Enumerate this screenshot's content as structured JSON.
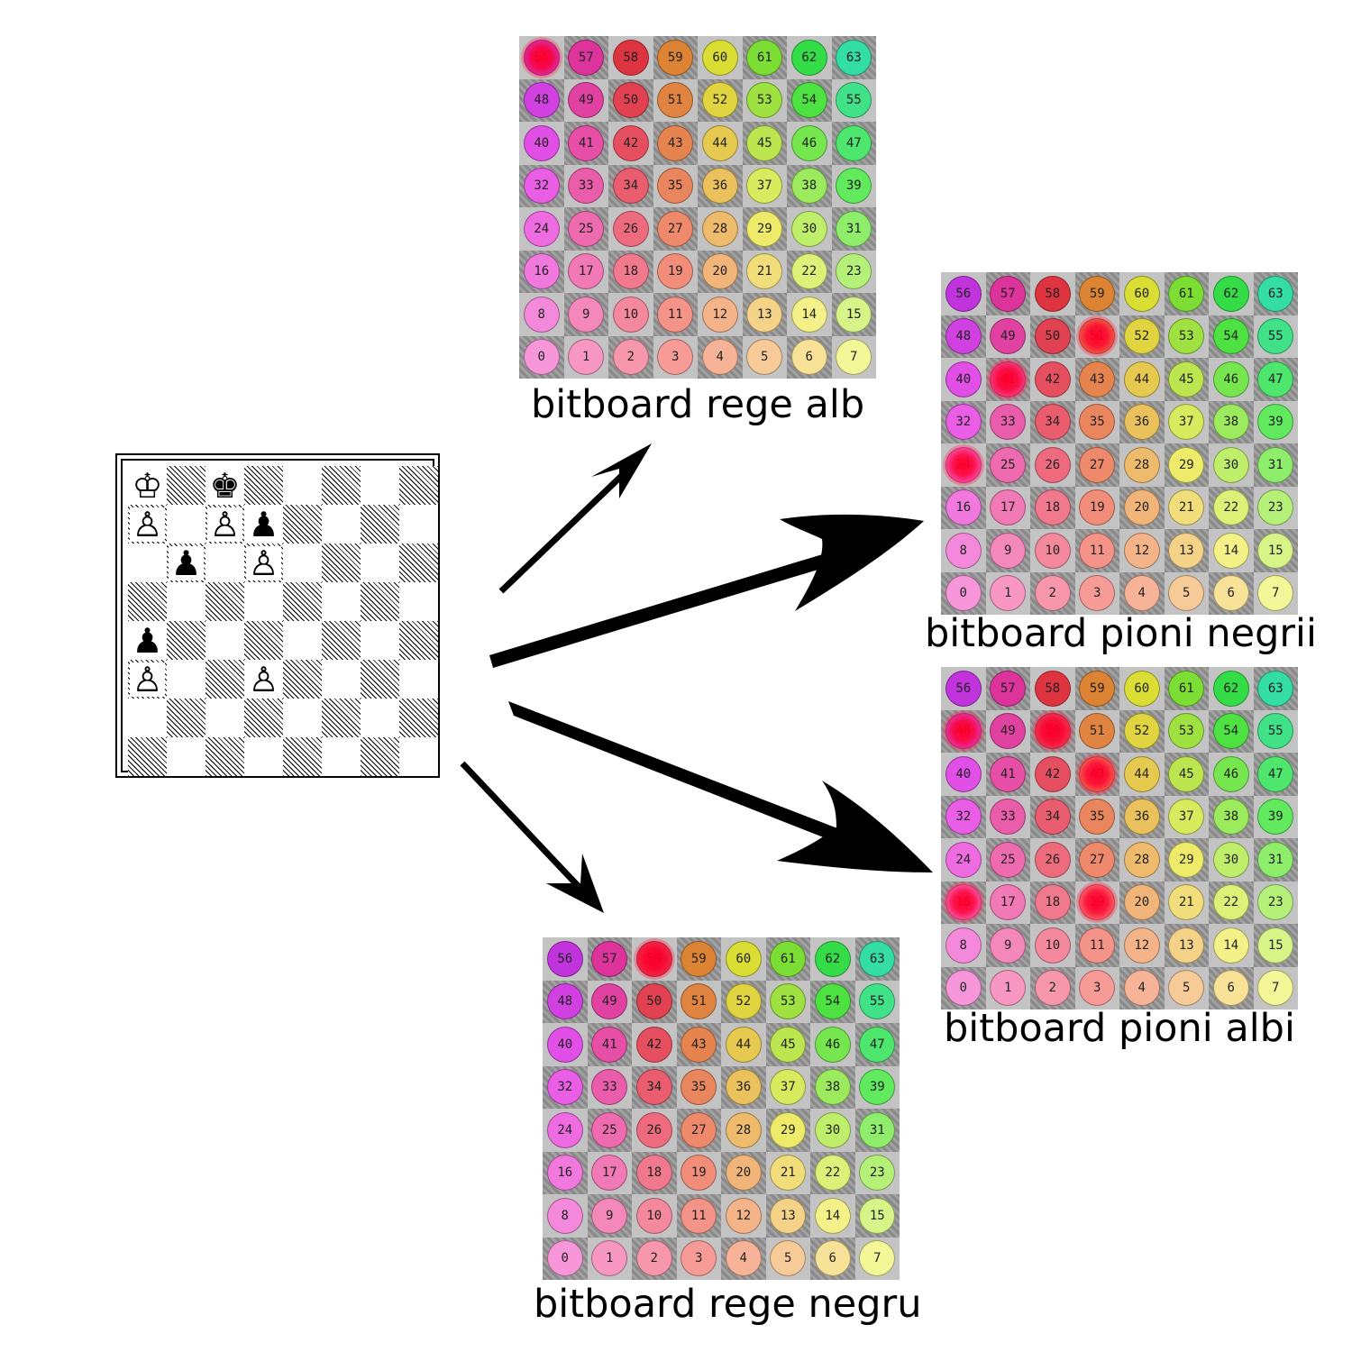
{
  "colors": {
    "highlight": "#ff0030",
    "dark_square": "#8a8a8a",
    "light_square": "#c3c3c3",
    "arrow": "#000000"
  },
  "chessboard": {
    "pieces": [
      {
        "square": "a8",
        "glyph": "♔",
        "name": "white-king-icon"
      },
      {
        "square": "c8",
        "glyph": "♚",
        "name": "black-king-icon"
      },
      {
        "square": "a7",
        "glyph": "♙",
        "name": "white-pawn-icon"
      },
      {
        "square": "c7",
        "glyph": "♙",
        "name": "white-pawn-icon"
      },
      {
        "square": "d7",
        "glyph": "♟",
        "name": "black-pawn-icon"
      },
      {
        "square": "b6",
        "glyph": "♟",
        "name": "black-pawn-icon"
      },
      {
        "square": "d6",
        "glyph": "♙",
        "name": "white-pawn-icon"
      },
      {
        "square": "a4",
        "glyph": "♟",
        "name": "black-pawn-icon"
      },
      {
        "square": "a3",
        "glyph": "♙",
        "name": "white-pawn-icon"
      },
      {
        "square": "d3",
        "glyph": "♙",
        "name": "white-pawn-icon"
      }
    ]
  },
  "bitboards": [
    {
      "id": "white-king",
      "label": "bitboard rege alb",
      "highlighted": [
        56
      ]
    },
    {
      "id": "black-pawns",
      "label": "bitboard pioni negrii",
      "highlighted": [
        51,
        41,
        24
      ]
    },
    {
      "id": "white-pawns",
      "label": "bitboard pioni albi",
      "highlighted": [
        48,
        50,
        43,
        16,
        19
      ]
    },
    {
      "id": "black-king",
      "label": "bitboard rege negru",
      "highlighted": [
        58
      ]
    }
  ]
}
